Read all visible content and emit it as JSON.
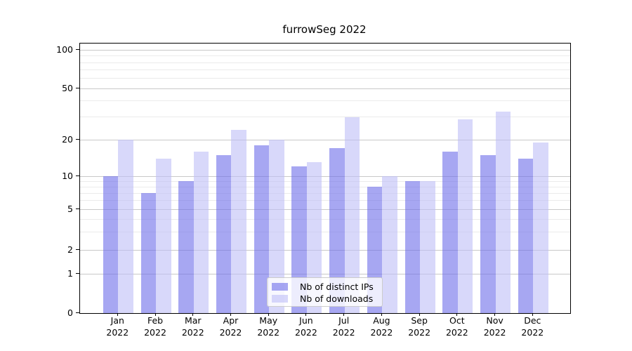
{
  "chart_data": {
    "type": "bar",
    "title": "furrowSeg 2022",
    "categories": [
      "Jan 2022",
      "Feb 2022",
      "Mar 2022",
      "Apr 2022",
      "May 2022",
      "Jun 2022",
      "Jul 2022",
      "Aug 2022",
      "Sep 2022",
      "Oct 2022",
      "Nov 2022",
      "Dec 2022"
    ],
    "series": [
      {
        "name": "Nb of distinct IPs",
        "color": "#6c6cea",
        "alpha": 0.6,
        "values": [
          10,
          7,
          9,
          15,
          18,
          12,
          17,
          8,
          9,
          16,
          15,
          14
        ]
      },
      {
        "name": "Nb of downloads",
        "color": "#bebef7",
        "alpha": 0.6,
        "values": [
          20,
          14,
          16,
          24,
          20,
          13,
          30,
          10,
          9,
          29,
          33,
          19
        ]
      }
    ],
    "yscale": "symlog",
    "ylim": [
      0,
      110
    ],
    "yticks": [
      0,
      1,
      2,
      5,
      10,
      20,
      50,
      100
    ],
    "minor_gridlines": [
      3,
      4,
      6,
      7,
      8,
      9,
      30,
      40,
      60,
      70,
      80,
      90
    ],
    "grid": "horizontal major+minor",
    "legend_position": "lower center",
    "xlabel": "",
    "ylabel": ""
  },
  "colors": {
    "grid_major": "#c8c8c8",
    "grid_minor": "#ebebeb",
    "spine": "#000000",
    "text": "#000000",
    "legend_border": "#cccccc",
    "legend_bg": "#ffffff",
    "ips_displayed": "#a7a7f5",
    "downloads_displayed": "#d8d8fa"
  }
}
